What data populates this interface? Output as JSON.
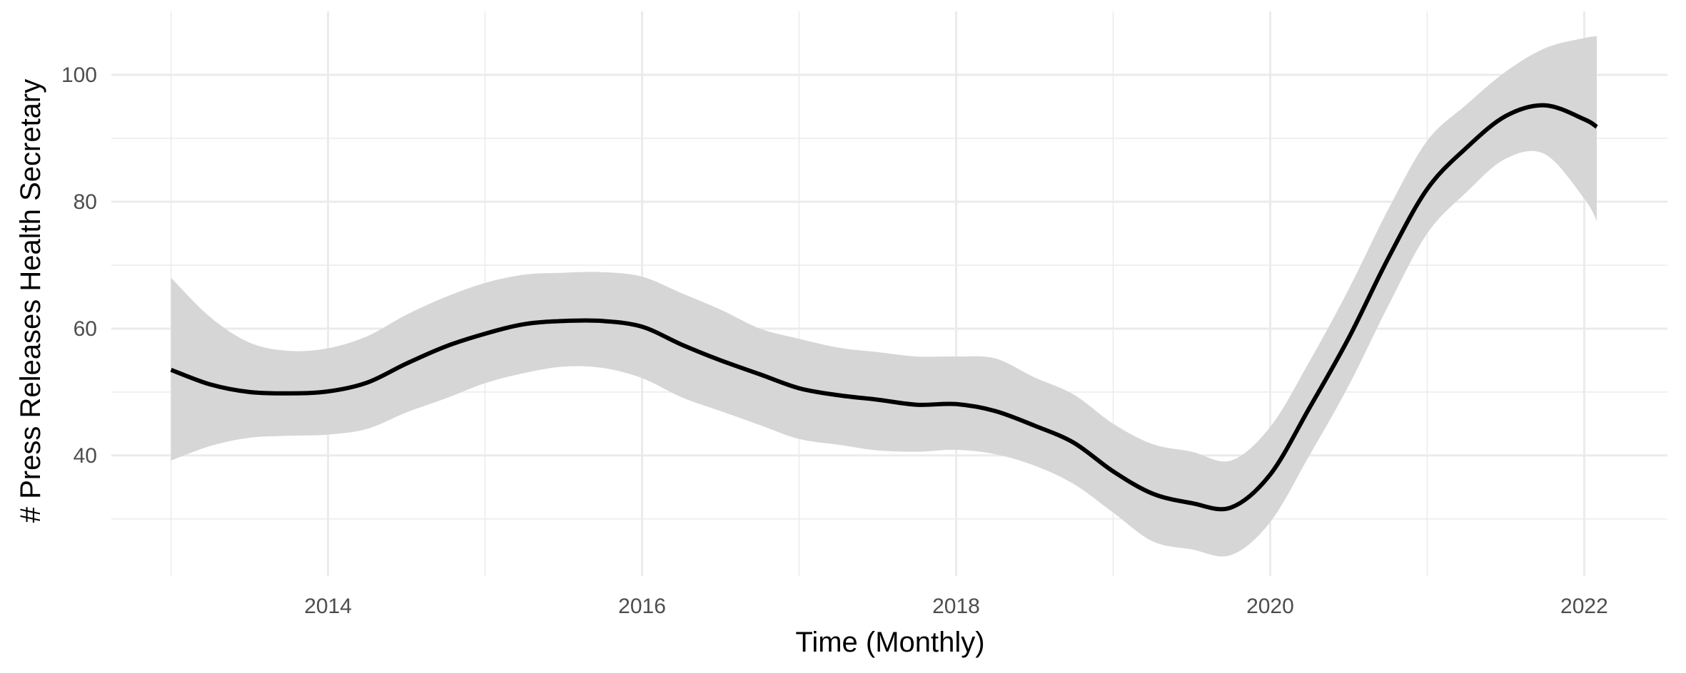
{
  "chart_data": {
    "type": "line",
    "title": "",
    "xlabel": "Time (Monthly)",
    "ylabel": "# Press Releases Health Secretary",
    "xlim": [
      2012.62,
      2022.53
    ],
    "ylim": [
      21,
      110
    ],
    "x_ticks": [
      2014,
      2016,
      2018,
      2020,
      2022
    ],
    "x_tick_labels": [
      "2014",
      "2016",
      "2018",
      "2020",
      "2022"
    ],
    "y_ticks": [
      40,
      60,
      80,
      100
    ],
    "y_tick_labels": [
      "40",
      "60",
      "80",
      "100"
    ],
    "grid": true,
    "legend": "none",
    "colors": {
      "line": "#000000",
      "band": "#d6d6d6",
      "grid": "#ebebeb",
      "background": "#ffffff"
    },
    "series": [
      {
        "x": [
          2013.0,
          2013.25,
          2013.5,
          2013.75,
          2014.0,
          2014.25,
          2014.5,
          2014.75,
          2015.0,
          2015.25,
          2015.5,
          2015.75,
          2016.0,
          2016.25,
          2016.5,
          2016.75,
          2017.0,
          2017.25,
          2017.5,
          2017.75,
          2018.0,
          2018.25,
          2018.5,
          2018.75,
          2019.0,
          2019.25,
          2019.5,
          2019.75,
          2020.0,
          2020.25,
          2020.5,
          2020.75,
          2021.0,
          2021.25,
          2021.5,
          2021.75,
          2022.0,
          2022.08
        ],
        "y": [
          53.5,
          51.2,
          50.0,
          49.8,
          50.1,
          51.5,
          54.5,
          57.2,
          59.2,
          60.7,
          61.2,
          61.2,
          60.3,
          57.5,
          55.0,
          52.8,
          50.6,
          49.5,
          48.8,
          48.0,
          48.1,
          47.0,
          44.7,
          42.0,
          37.5,
          34.0,
          32.5,
          31.8,
          37.0,
          47.5,
          58.5,
          71.0,
          82.0,
          88.5,
          93.5,
          95.2,
          93.0,
          91.8
        ],
        "lower": [
          39.2,
          41.5,
          42.8,
          43.1,
          43.3,
          44.2,
          46.8,
          49.0,
          51.4,
          53.0,
          54.0,
          53.8,
          52.2,
          49.2,
          47.0,
          44.8,
          42.6,
          41.7,
          40.8,
          40.6,
          40.9,
          40.2,
          38.4,
          35.5,
          31.0,
          26.5,
          25.2,
          24.3,
          29.5,
          40.0,
          51.0,
          63.5,
          75.0,
          81.5,
          86.8,
          87.5,
          80.5,
          77.0
        ],
        "upper": [
          68.0,
          61.8,
          57.8,
          56.5,
          56.9,
          58.8,
          62.2,
          65.0,
          67.2,
          68.5,
          68.8,
          68.9,
          68.2,
          65.6,
          63.0,
          60.0,
          58.4,
          57.0,
          56.3,
          55.6,
          55.6,
          55.3,
          52.3,
          49.6,
          45.0,
          41.8,
          40.6,
          39.2,
          44.5,
          54.8,
          66.2,
          78.7,
          89.6,
          95.3,
          100.5,
          104.2,
          105.8,
          106.1
        ]
      }
    ]
  }
}
